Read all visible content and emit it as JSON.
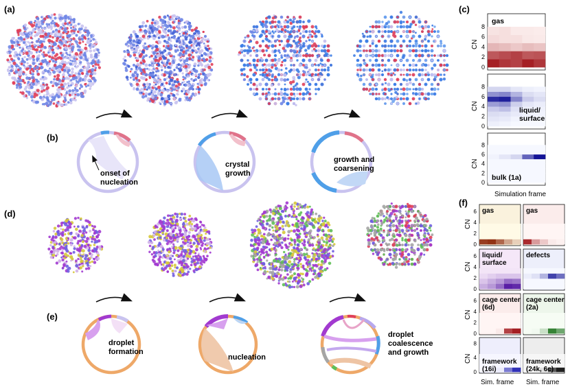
{
  "panel_labels": {
    "a": "(a)",
    "b": "(b)",
    "c": "(c)",
    "d": "(d)",
    "e": "(e)",
    "f": "(f)"
  },
  "colors": {
    "red_atom": "#e0405a",
    "blue_atom": "#6f86e6",
    "lavender": "#c9c3ef",
    "crystal_blue": "#4f9fe8",
    "orange": "#eea868",
    "purple": "#a23ad0",
    "yellow": "#d6c83a",
    "green": "#5fbf57",
    "grey": "#a5a5a5"
  },
  "top_row": {
    "chord_labels": [
      [
        "onset of",
        "nucleation"
      ],
      [
        "crystal",
        "growth"
      ],
      [
        "growth and",
        "coarsening"
      ]
    ],
    "panel_c": {
      "ylabel": "CN",
      "xlabel": "Simulation frame",
      "tick_labels": [
        "0",
        "2",
        "4",
        "6",
        "8"
      ],
      "heatmaps": [
        {
          "label": "gas",
          "scheme": "red",
          "columns": [
            [
              0.95,
              0.7,
              0.28,
              0.12,
              0.08
            ],
            [
              0.85,
              0.75,
              0.25,
              0.1,
              0.1
            ],
            [
              0.8,
              0.8,
              0.2,
              0.1,
              0.05
            ],
            [
              0.95,
              0.7,
              0.25,
              0.06,
              0.05
            ],
            [
              0.85,
              0.72,
              0.22,
              0.05,
              0.04
            ]
          ]
        },
        {
          "label": "liquid/\nsurface",
          "label_lines": [
            "liquid/",
            "surface"
          ],
          "scheme": "blue",
          "columns": [
            [
              0.04,
              0.08,
              0.12,
              0.2,
              0.4,
              0.9,
              0.45,
              0.15
            ],
            [
              0.02,
              0.06,
              0.1,
              0.25,
              0.45,
              0.95,
              0.5,
              0.15
            ],
            [
              0,
              0.02,
              0.06,
              0.1,
              0.18,
              0.5,
              0.3,
              0.08
            ],
            [
              0,
              0.01,
              0.03,
              0.04,
              0.08,
              0.2,
              0.12,
              0.04
            ],
            [
              0,
              0,
              0.02,
              0.03,
              0.05,
              0.12,
              0.08,
              0.02
            ]
          ]
        },
        {
          "label": "bulk (1a)",
          "scheme": "blue",
          "columns": [
            [
              0,
              0,
              0,
              0,
              0,
              0.02,
              0,
              0
            ],
            [
              0,
              0,
              0,
              0,
              0,
              0.08,
              0,
              0
            ],
            [
              0,
              0,
              0,
              0,
              0,
              0.15,
              0,
              0
            ],
            [
              0,
              0,
              0,
              0,
              0,
              0.65,
              0,
              0
            ],
            [
              0,
              0,
              0,
              0,
              0,
              1.0,
              0,
              0
            ]
          ]
        }
      ]
    }
  },
  "bottom_row": {
    "chord_labels": [
      [
        "droplet",
        "formation"
      ],
      [
        "nucleation"
      ],
      [
        "droplet",
        "coalescence",
        "and growth"
      ]
    ],
    "panel_f": {
      "ylabel": "CN",
      "xlabels": [
        "Sim. frame",
        "Sim. frame"
      ],
      "tick_labels_a": [
        "0",
        "2",
        "4",
        "6"
      ],
      "tick_labels_b": [
        "0",
        "4",
        "8"
      ],
      "heatmaps": [
        {
          "label_lines": [
            "gas"
          ],
          "scheme": "orange"
        },
        {
          "label_lines": [
            "gas"
          ],
          "scheme": "red"
        },
        {
          "label_lines": [
            "liquid/",
            "surface"
          ],
          "scheme": "magenta"
        },
        {
          "label_lines": [
            "defects"
          ],
          "scheme": "blue"
        },
        {
          "label_lines": [
            "cage center",
            "(6d)"
          ],
          "scheme": "red"
        },
        {
          "label_lines": [
            "cage center",
            "(2a)"
          ],
          "scheme": "green"
        },
        {
          "label_lines": [
            "framework",
            "(16i)"
          ],
          "scheme": "indigo"
        },
        {
          "label_lines": [
            "framework",
            "(24k, 6c)"
          ],
          "scheme": "black"
        }
      ]
    }
  }
}
